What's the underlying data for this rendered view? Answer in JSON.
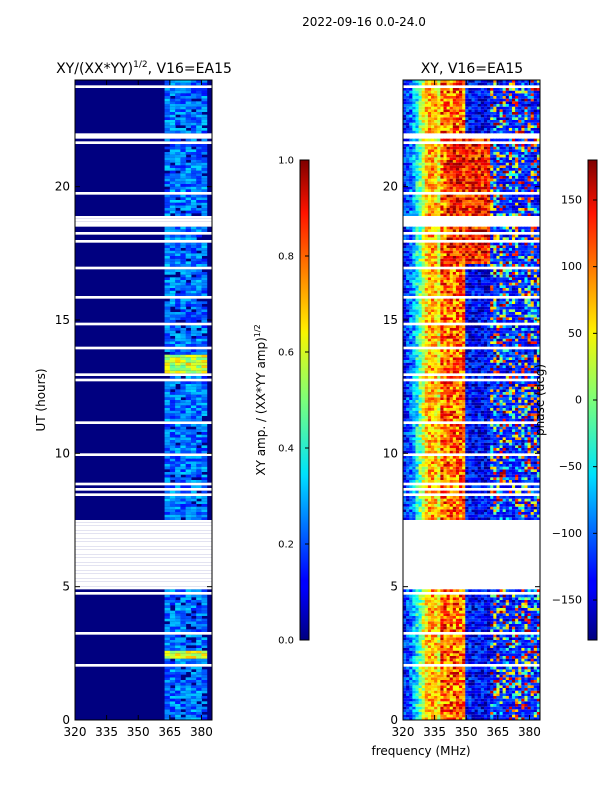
{
  "suptitle": "2022-09-16 0.0-24.0",
  "colors": {
    "background": "#000080"
  },
  "chart_data": [
    {
      "type": "heatmap",
      "title_main": "XY/(XX*YY)",
      "title_sup": "1/2",
      "title_rest": ", V16=EA15",
      "xlabel": "frequency (MHz)",
      "ylabel": "UT (hours)",
      "xlim": [
        320,
        385
      ],
      "ylim": [
        0,
        24
      ],
      "xticks": [
        320,
        335,
        350,
        365,
        380
      ],
      "yticks": [
        0,
        5,
        10,
        15,
        20
      ],
      "colorbar": {
        "label_main": "XY amp. / (XX*YY amp)",
        "label_sup": "1/2",
        "range": [
          0.0,
          1.0
        ],
        "ticks": [
          "0.0",
          "0.2",
          "0.4",
          "0.6",
          "0.8",
          "1.0"
        ],
        "tick_values": [
          0.0,
          0.2,
          0.4,
          0.6,
          0.8,
          1.0
        ]
      },
      "features": {
        "no_data_hours": [
          [
            4.95,
            7.45
          ]
        ],
        "high_amplitude_band_mhz": [
          361,
          382
        ],
        "high_amplitude_hours": [
          [
            12.9,
            13.7
          ],
          [
            2.3,
            2.6
          ]
        ]
      }
    },
    {
      "type": "heatmap",
      "title": "XY, V16=EA15",
      "xlim": [
        320,
        385
      ],
      "ylim": [
        0,
        24
      ],
      "xticks": [
        320,
        335,
        350,
        365,
        380
      ],
      "yticks": [
        0,
        5,
        10,
        15,
        20
      ],
      "colorbar": {
        "label": "phase (deg)",
        "range": [
          -180,
          180
        ],
        "ticks": [
          "150",
          "100",
          "50",
          "0",
          "−50",
          "−100",
          "−150"
        ],
        "tick_values": [
          150,
          100,
          50,
          0,
          -50,
          -100,
          -150
        ]
      },
      "features": {
        "no_data_hours": [
          [
            4.95,
            7.45
          ]
        ],
        "phase_ridge_mhz": 333,
        "noisy_band_mhz": [
          360,
          385
        ]
      }
    }
  ]
}
